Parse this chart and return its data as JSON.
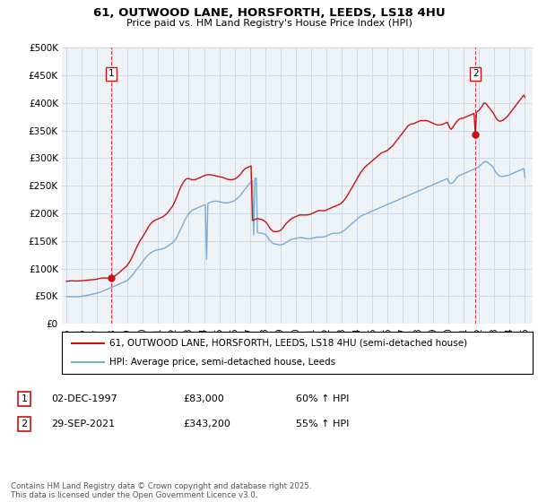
{
  "title_line1": "61, OUTWOOD LANE, HORSFORTH, LEEDS, LS18 4HU",
  "title_line2": "Price paid vs. HM Land Registry's House Price Index (HPI)",
  "ylabel_ticks": [
    "£0",
    "£50K",
    "£100K",
    "£150K",
    "£200K",
    "£250K",
    "£300K",
    "£350K",
    "£400K",
    "£450K",
    "£500K"
  ],
  "ylabel_values": [
    0,
    50000,
    100000,
    150000,
    200000,
    250000,
    300000,
    350000,
    400000,
    450000,
    500000
  ],
  "ylim": [
    0,
    500000
  ],
  "xlim_start": 1994.7,
  "xlim_end": 2025.5,
  "xtick_years": [
    1995,
    1996,
    1997,
    1998,
    1999,
    2000,
    2001,
    2002,
    2003,
    2004,
    2005,
    2006,
    2007,
    2008,
    2009,
    2010,
    2011,
    2012,
    2013,
    2014,
    2015,
    2016,
    2017,
    2018,
    2019,
    2020,
    2021,
    2022,
    2023,
    2024,
    2025
  ],
  "red_line_color": "#cc1111",
  "blue_line_color": "#7aadd4",
  "grid_color": "#d0d8e8",
  "background_color": "#eef3f8",
  "plot_bg_color": "#eef3f8",
  "legend_label_red": "61, OUTWOOD LANE, HORSFORTH, LEEDS, LS18 4HU (semi-detached house)",
  "legend_label_blue": "HPI: Average price, semi-detached house, Leeds",
  "annotation1_num": "1",
  "annotation1_date": "02-DEC-1997",
  "annotation1_price": "£83,000",
  "annotation1_hpi": "60% ↑ HPI",
  "annotation2_num": "2",
  "annotation2_date": "29-SEP-2021",
  "annotation2_price": "£343,200",
  "annotation2_hpi": "55% ↑ HPI",
  "footer": "Contains HM Land Registry data © Crown copyright and database right 2025.\nThis data is licensed under the Open Government Licence v3.0.",
  "sale1_x": 1997.92,
  "sale1_y": 83000,
  "sale2_x": 2021.75,
  "sale2_y": 343200,
  "hpi_data_x": [
    1995.0,
    1995.08,
    1995.17,
    1995.25,
    1995.33,
    1995.42,
    1995.5,
    1995.58,
    1995.67,
    1995.75,
    1995.83,
    1995.92,
    1996.0,
    1996.08,
    1996.17,
    1996.25,
    1996.33,
    1996.42,
    1996.5,
    1996.58,
    1996.67,
    1996.75,
    1996.83,
    1996.92,
    1997.0,
    1997.08,
    1997.17,
    1997.25,
    1997.33,
    1997.42,
    1997.5,
    1997.58,
    1997.67,
    1997.75,
    1997.83,
    1997.92,
    1998.0,
    1998.08,
    1998.17,
    1998.25,
    1998.33,
    1998.42,
    1998.5,
    1998.58,
    1998.67,
    1998.75,
    1998.83,
    1998.92,
    1999.0,
    1999.08,
    1999.17,
    1999.25,
    1999.33,
    1999.42,
    1999.5,
    1999.58,
    1999.67,
    1999.75,
    1999.83,
    1999.92,
    2000.0,
    2000.08,
    2000.17,
    2000.25,
    2000.33,
    2000.42,
    2000.5,
    2000.58,
    2000.67,
    2000.75,
    2000.83,
    2000.92,
    2001.0,
    2001.08,
    2001.17,
    2001.25,
    2001.33,
    2001.42,
    2001.5,
    2001.58,
    2001.67,
    2001.75,
    2001.83,
    2001.92,
    2002.0,
    2002.08,
    2002.17,
    2002.25,
    2002.33,
    2002.42,
    2002.5,
    2002.58,
    2002.67,
    2002.75,
    2002.83,
    2002.92,
    2003.0,
    2003.08,
    2003.17,
    2003.25,
    2003.33,
    2003.42,
    2003.5,
    2003.58,
    2003.67,
    2003.75,
    2003.83,
    2003.92,
    2004.0,
    2004.08,
    2004.17,
    2004.25,
    2004.33,
    2004.42,
    2004.5,
    2004.58,
    2004.67,
    2004.75,
    2004.83,
    2004.92,
    2005.0,
    2005.08,
    2005.17,
    2005.25,
    2005.33,
    2005.42,
    2005.5,
    2005.58,
    2005.67,
    2005.75,
    2005.83,
    2005.92,
    2006.0,
    2006.08,
    2006.17,
    2006.25,
    2006.33,
    2006.42,
    2006.5,
    2006.58,
    2006.67,
    2006.75,
    2006.83,
    2006.92,
    2007.0,
    2007.08,
    2007.17,
    2007.25,
    2007.33,
    2007.42,
    2007.5,
    2007.58,
    2007.67,
    2007.75,
    2007.83,
    2007.92,
    2008.0,
    2008.08,
    2008.17,
    2008.25,
    2008.33,
    2008.42,
    2008.5,
    2008.58,
    2008.67,
    2008.75,
    2008.83,
    2008.92,
    2009.0,
    2009.08,
    2009.17,
    2009.25,
    2009.33,
    2009.42,
    2009.5,
    2009.58,
    2009.67,
    2009.75,
    2009.83,
    2009.92,
    2010.0,
    2010.08,
    2010.17,
    2010.25,
    2010.33,
    2010.42,
    2010.5,
    2010.58,
    2010.67,
    2010.75,
    2010.83,
    2010.92,
    2011.0,
    2011.08,
    2011.17,
    2011.25,
    2011.33,
    2011.42,
    2011.5,
    2011.58,
    2011.67,
    2011.75,
    2011.83,
    2011.92,
    2012.0,
    2012.08,
    2012.17,
    2012.25,
    2012.33,
    2012.42,
    2012.5,
    2012.58,
    2012.67,
    2012.75,
    2012.83,
    2012.92,
    2013.0,
    2013.08,
    2013.17,
    2013.25,
    2013.33,
    2013.42,
    2013.5,
    2013.58,
    2013.67,
    2013.75,
    2013.83,
    2013.92,
    2014.0,
    2014.08,
    2014.17,
    2014.25,
    2014.33,
    2014.42,
    2014.5,
    2014.58,
    2014.67,
    2014.75,
    2014.83,
    2014.92,
    2015.0,
    2015.08,
    2015.17,
    2015.25,
    2015.33,
    2015.42,
    2015.5,
    2015.58,
    2015.67,
    2015.75,
    2015.83,
    2015.92,
    2016.0,
    2016.08,
    2016.17,
    2016.25,
    2016.33,
    2016.42,
    2016.5,
    2016.58,
    2016.67,
    2016.75,
    2016.83,
    2016.92,
    2017.0,
    2017.08,
    2017.17,
    2017.25,
    2017.33,
    2017.42,
    2017.5,
    2017.58,
    2017.67,
    2017.75,
    2017.83,
    2017.92,
    2018.0,
    2018.08,
    2018.17,
    2018.25,
    2018.33,
    2018.42,
    2018.5,
    2018.58,
    2018.67,
    2018.75,
    2018.83,
    2018.92,
    2019.0,
    2019.08,
    2019.17,
    2019.25,
    2019.33,
    2019.42,
    2019.5,
    2019.58,
    2019.67,
    2019.75,
    2019.83,
    2019.92,
    2020.0,
    2020.08,
    2020.17,
    2020.25,
    2020.33,
    2020.42,
    2020.5,
    2020.58,
    2020.67,
    2020.75,
    2020.83,
    2020.92,
    2021.0,
    2021.08,
    2021.17,
    2021.25,
    2021.33,
    2021.42,
    2021.5,
    2021.58,
    2021.67,
    2021.75,
    2021.83,
    2021.92,
    2022.0,
    2022.08,
    2022.17,
    2022.25,
    2022.33,
    2022.42,
    2022.5,
    2022.58,
    2022.67,
    2022.75,
    2022.83,
    2022.92,
    2023.0,
    2023.08,
    2023.17,
    2023.25,
    2023.33,
    2023.42,
    2023.5,
    2023.58,
    2023.67,
    2023.75,
    2023.83,
    2023.92,
    2024.0,
    2024.08,
    2024.17,
    2024.25,
    2024.33,
    2024.42,
    2024.5,
    2024.58,
    2024.67,
    2024.75,
    2024.83,
    2024.92,
    2025.0
  ],
  "hpi_data_y": [
    49500,
    49300,
    49200,
    49100,
    49000,
    48900,
    48800,
    48800,
    48900,
    49000,
    49200,
    49500,
    50000,
    50300,
    50600,
    51000,
    51500,
    52000,
    52500,
    53000,
    53500,
    54000,
    54500,
    55000,
    55500,
    56200,
    57000,
    57800,
    58600,
    59500,
    60500,
    61500,
    62500,
    63500,
    64500,
    65500,
    66500,
    67500,
    68500,
    69500,
    70500,
    71500,
    72500,
    73500,
    74500,
    75500,
    76500,
    77500,
    79000,
    81000,
    83500,
    86000,
    89000,
    92000,
    95000,
    98000,
    101000,
    104000,
    107000,
    110000,
    113000,
    116000,
    119000,
    122000,
    124000,
    126000,
    128000,
    130000,
    131000,
    132000,
    133000,
    133500,
    134000,
    134500,
    135000,
    135500,
    136000,
    137000,
    138500,
    140000,
    141500,
    143000,
    144500,
    146000,
    148000,
    151000,
    154000,
    158000,
    163000,
    168000,
    173000,
    178000,
    183000,
    188000,
    192000,
    196000,
    199000,
    202000,
    204000,
    206000,
    207000,
    208000,
    209000,
    210000,
    211000,
    212000,
    213000,
    214000,
    215000,
    216000,
    117000,
    218000,
    219000,
    220000,
    221000,
    221500,
    222000,
    222000,
    222000,
    221500,
    221000,
    220500,
    220000,
    219500,
    219000,
    219000,
    219000,
    219500,
    220000,
    220500,
    221000,
    222000,
    223000,
    225000,
    227000,
    229000,
    231000,
    234000,
    237000,
    240000,
    243000,
    246000,
    249000,
    252000,
    255000,
    257000,
    259000,
    161000,
    263000,
    264000,
    165000,
    165000,
    164500,
    164000,
    163500,
    163000,
    162000,
    160000,
    157000,
    153000,
    150000,
    148000,
    146000,
    145000,
    144500,
    144000,
    143500,
    143000,
    143000,
    143500,
    144000,
    145000,
    146500,
    148000,
    149500,
    151000,
    152000,
    153000,
    153500,
    154000,
    154500,
    155000,
    155500,
    156000,
    156000,
    156000,
    155500,
    155000,
    154500,
    154000,
    154000,
    154000,
    154500,
    155000,
    155500,
    156000,
    156500,
    157000,
    157000,
    157000,
    157000,
    157000,
    157500,
    158000,
    159000,
    160000,
    161000,
    162000,
    163000,
    163500,
    164000,
    164000,
    164000,
    164000,
    164500,
    165000,
    166000,
    167500,
    169000,
    171000,
    173000,
    175000,
    177000,
    179000,
    181000,
    183000,
    185000,
    187000,
    189000,
    191000,
    193000,
    195000,
    196000,
    197000,
    198000,
    199000,
    200000,
    201000,
    202000,
    203000,
    204000,
    205000,
    206000,
    207000,
    208000,
    209000,
    210000,
    211000,
    212000,
    213000,
    214000,
    215000,
    216000,
    217000,
    218000,
    219000,
    220000,
    221000,
    222000,
    223000,
    224000,
    225000,
    226000,
    227000,
    228000,
    229000,
    230000,
    231000,
    232000,
    233000,
    234000,
    235000,
    236000,
    237000,
    238000,
    239000,
    240000,
    241000,
    242000,
    243000,
    244000,
    245000,
    246000,
    247000,
    248000,
    249000,
    250000,
    251000,
    252000,
    253000,
    254000,
    255000,
    256000,
    257000,
    258000,
    259000,
    260000,
    261000,
    262000,
    263000,
    257000,
    255000,
    254000,
    255000,
    257000,
    260000,
    263000,
    266000,
    268000,
    269000,
    270000,
    271000,
    272000,
    273000,
    274000,
    275000,
    276000,
    277000,
    278000,
    279000,
    280000,
    281000,
    282000,
    283000,
    285000,
    287000,
    289000,
    291000,
    293000,
    294000,
    293000,
    292000,
    290000,
    288000,
    286000,
    284000,
    279000,
    275000,
    272000,
    270000,
    268000,
    267000,
    267000,
    267000,
    267500,
    268000,
    268500,
    269000,
    270000,
    271000,
    272000,
    273000,
    274000,
    275000,
    276000,
    277000,
    278000,
    279000,
    280000,
    281000,
    265000
  ],
  "red_data_x": [
    1995.0,
    1995.08,
    1995.17,
    1995.25,
    1995.33,
    1995.42,
    1995.5,
    1995.58,
    1995.67,
    1995.75,
    1995.83,
    1995.92,
    1996.0,
    1996.08,
    1996.17,
    1996.25,
    1996.33,
    1996.42,
    1996.5,
    1996.58,
    1996.67,
    1996.75,
    1996.83,
    1996.92,
    1997.0,
    1997.08,
    1997.17,
    1997.25,
    1997.33,
    1997.42,
    1997.5,
    1997.58,
    1997.67,
    1997.75,
    1997.83,
    1997.92,
    1998.0,
    1998.08,
    1998.17,
    1998.25,
    1998.33,
    1998.42,
    1998.5,
    1998.58,
    1998.67,
    1998.75,
    1998.83,
    1998.92,
    1999.0,
    1999.08,
    1999.17,
    1999.25,
    1999.33,
    1999.42,
    1999.5,
    1999.58,
    1999.67,
    1999.75,
    1999.83,
    1999.92,
    2000.0,
    2000.08,
    2000.17,
    2000.25,
    2000.33,
    2000.42,
    2000.5,
    2000.58,
    2000.67,
    2000.75,
    2000.83,
    2000.92,
    2001.0,
    2001.08,
    2001.17,
    2001.25,
    2001.33,
    2001.42,
    2001.5,
    2001.58,
    2001.67,
    2001.75,
    2001.83,
    2001.92,
    2002.0,
    2002.08,
    2002.17,
    2002.25,
    2002.33,
    2002.42,
    2002.5,
    2002.58,
    2002.67,
    2002.75,
    2002.83,
    2002.92,
    2003.0,
    2003.08,
    2003.17,
    2003.25,
    2003.33,
    2003.42,
    2003.5,
    2003.58,
    2003.67,
    2003.75,
    2003.83,
    2003.92,
    2004.0,
    2004.08,
    2004.17,
    2004.25,
    2004.33,
    2004.42,
    2004.5,
    2004.58,
    2004.67,
    2004.75,
    2004.83,
    2004.92,
    2005.0,
    2005.08,
    2005.17,
    2005.25,
    2005.33,
    2005.42,
    2005.5,
    2005.58,
    2005.67,
    2005.75,
    2005.83,
    2005.92,
    2006.0,
    2006.08,
    2006.17,
    2006.25,
    2006.33,
    2006.42,
    2006.5,
    2006.58,
    2006.67,
    2006.75,
    2006.83,
    2006.92,
    2007.0,
    2007.08,
    2007.17,
    2007.25,
    2007.33,
    2007.42,
    2007.5,
    2007.58,
    2007.67,
    2007.75,
    2007.83,
    2007.92,
    2008.0,
    2008.08,
    2008.17,
    2008.25,
    2008.33,
    2008.42,
    2008.5,
    2008.58,
    2008.67,
    2008.75,
    2008.83,
    2008.92,
    2009.0,
    2009.08,
    2009.17,
    2009.25,
    2009.33,
    2009.42,
    2009.5,
    2009.58,
    2009.67,
    2009.75,
    2009.83,
    2009.92,
    2010.0,
    2010.08,
    2010.17,
    2010.25,
    2010.33,
    2010.42,
    2010.5,
    2010.58,
    2010.67,
    2010.75,
    2010.83,
    2010.92,
    2011.0,
    2011.08,
    2011.17,
    2011.25,
    2011.33,
    2011.42,
    2011.5,
    2011.58,
    2011.67,
    2011.75,
    2011.83,
    2011.92,
    2012.0,
    2012.08,
    2012.17,
    2012.25,
    2012.33,
    2012.42,
    2012.5,
    2012.58,
    2012.67,
    2012.75,
    2012.83,
    2012.92,
    2013.0,
    2013.08,
    2013.17,
    2013.25,
    2013.33,
    2013.42,
    2013.5,
    2013.58,
    2013.67,
    2013.75,
    2013.83,
    2013.92,
    2014.0,
    2014.08,
    2014.17,
    2014.25,
    2014.33,
    2014.42,
    2014.5,
    2014.58,
    2014.67,
    2014.75,
    2014.83,
    2014.92,
    2015.0,
    2015.08,
    2015.17,
    2015.25,
    2015.33,
    2015.42,
    2015.5,
    2015.58,
    2015.67,
    2015.75,
    2015.83,
    2015.92,
    2016.0,
    2016.08,
    2016.17,
    2016.25,
    2016.33,
    2016.42,
    2016.5,
    2016.58,
    2016.67,
    2016.75,
    2016.83,
    2016.92,
    2017.0,
    2017.08,
    2017.17,
    2017.25,
    2017.33,
    2017.42,
    2017.5,
    2017.58,
    2017.67,
    2017.75,
    2017.83,
    2017.92,
    2018.0,
    2018.08,
    2018.17,
    2018.25,
    2018.33,
    2018.42,
    2018.5,
    2018.58,
    2018.67,
    2018.75,
    2018.83,
    2018.92,
    2019.0,
    2019.08,
    2019.17,
    2019.25,
    2019.33,
    2019.42,
    2019.5,
    2019.58,
    2019.67,
    2019.75,
    2019.83,
    2019.92,
    2020.0,
    2020.08,
    2020.17,
    2020.25,
    2020.33,
    2020.42,
    2020.5,
    2020.58,
    2020.67,
    2020.75,
    2020.83,
    2020.92,
    2021.0,
    2021.08,
    2021.17,
    2021.25,
    2021.33,
    2021.42,
    2021.5,
    2021.58,
    2021.67,
    2021.75,
    2021.83,
    2021.92,
    2022.0,
    2022.08,
    2022.17,
    2022.25,
    2022.33,
    2022.42,
    2022.5,
    2022.58,
    2022.67,
    2022.75,
    2022.83,
    2022.92,
    2023.0,
    2023.08,
    2023.17,
    2023.25,
    2023.33,
    2023.42,
    2023.5,
    2023.58,
    2023.67,
    2023.75,
    2023.83,
    2023.92,
    2024.0,
    2024.08,
    2024.17,
    2024.25,
    2024.33,
    2024.42,
    2024.5,
    2024.58,
    2024.67,
    2024.75,
    2024.83,
    2024.92,
    2025.0
  ],
  "red_data_y": [
    77000,
    77200,
    77500,
    77700,
    77800,
    77700,
    77600,
    77500,
    77500,
    77600,
    77700,
    77800,
    78000,
    78200,
    78500,
    78800,
    79000,
    79200,
    79400,
    79600,
    79800,
    80000,
    80200,
    80500,
    81000,
    81500,
    82000,
    82500,
    83000,
    83000,
    83000,
    83000,
    83000,
    83000,
    83000,
    83000,
    84000,
    85000,
    86500,
    88000,
    90000,
    92000,
    94000,
    96000,
    98000,
    100000,
    102000,
    104000,
    107000,
    110000,
    114000,
    118000,
    123000,
    128000,
    133000,
    138000,
    143000,
    147000,
    151000,
    155000,
    158000,
    162000,
    166000,
    170000,
    174000,
    178000,
    181000,
    183000,
    185000,
    187000,
    188000,
    189000,
    190000,
    191000,
    192000,
    193000,
    194000,
    196000,
    198000,
    200000,
    203000,
    206000,
    209000,
    212000,
    216000,
    221000,
    226000,
    232000,
    238000,
    244000,
    249000,
    253000,
    257000,
    260000,
    262000,
    263000,
    263000,
    262000,
    261000,
    261000,
    261000,
    261000,
    262000,
    263000,
    264000,
    265000,
    266000,
    267000,
    268000,
    269000,
    269500,
    270000,
    270000,
    270000,
    269500,
    269000,
    268500,
    268000,
    267500,
    267000,
    266500,
    266000,
    265500,
    265000,
    264000,
    263000,
    262000,
    261500,
    261000,
    261000,
    261000,
    261500,
    262000,
    263000,
    265000,
    267000,
    269000,
    272000,
    275000,
    278000,
    280000,
    282000,
    283000,
    284000,
    285000,
    286000,
    187000,
    188000,
    189000,
    190000,
    190500,
    190000,
    189500,
    189000,
    188000,
    187000,
    185000,
    183000,
    180000,
    176000,
    172000,
    170000,
    168000,
    167000,
    167000,
    167000,
    167500,
    168000,
    169000,
    171000,
    174000,
    177000,
    180000,
    183000,
    185000,
    187000,
    189000,
    191000,
    192000,
    193000,
    194000,
    195000,
    196000,
    197000,
    197000,
    197000,
    197000,
    197000,
    197000,
    197000,
    197500,
    198000,
    199000,
    200000,
    201000,
    202000,
    203000,
    204000,
    205000,
    205000,
    205000,
    205000,
    205000,
    205000,
    206000,
    207000,
    208000,
    209000,
    210000,
    211000,
    212000,
    213000,
    214000,
    215000,
    216000,
    217000,
    219000,
    221000,
    224000,
    227000,
    230000,
    234000,
    238000,
    242000,
    246000,
    250000,
    254000,
    258000,
    262000,
    266000,
    270000,
    274000,
    277000,
    280000,
    283000,
    285000,
    287000,
    289000,
    291000,
    293000,
    295000,
    297000,
    299000,
    301000,
    303000,
    305000,
    307000,
    309000,
    310000,
    311000,
    312000,
    313000,
    314000,
    316000,
    318000,
    320000,
    322000,
    325000,
    328000,
    331000,
    334000,
    337000,
    340000,
    343000,
    346000,
    349000,
    352000,
    355000,
    358000,
    360000,
    361000,
    362000,
    362000,
    363000,
    364000,
    365000,
    366000,
    367000,
    368000,
    368000,
    368000,
    368000,
    368000,
    368000,
    367000,
    366000,
    365000,
    364000,
    363000,
    362000,
    361000,
    360000,
    360000,
    360000,
    360500,
    361000,
    362000,
    363000,
    364000,
    365000,
    360000,
    355000,
    352000,
    355000,
    358000,
    362000,
    365000,
    368000,
    370000,
    371000,
    372000,
    372000,
    373000,
    374000,
    375000,
    376000,
    377000,
    378000,
    379000,
    380000,
    381000,
    343200,
    383000,
    385000,
    387000,
    390000,
    393000,
    397000,
    400000,
    399000,
    397000,
    394000,
    391000,
    388000,
    385000,
    382000,
    378000,
    374000,
    370000,
    368000,
    367000,
    367000,
    368000,
    369000,
    371000,
    373000,
    375000,
    378000,
    381000,
    384000,
    387000,
    390000,
    393000,
    396000,
    399000,
    402000,
    405000,
    408000,
    411000,
    414000,
    410000
  ]
}
